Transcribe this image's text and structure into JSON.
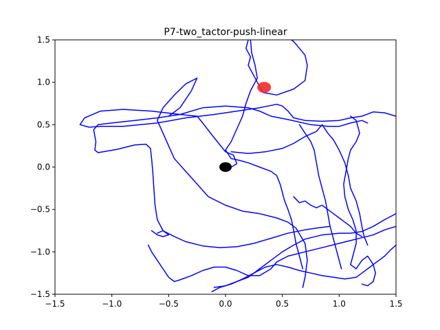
{
  "chart_data": {
    "type": "line",
    "title": "P7-two_tactor-push-linear",
    "xlabel": "",
    "ylabel": "",
    "xlim": [
      -1.5,
      1.5
    ],
    "ylim": [
      -1.5,
      1.5
    ],
    "xticks": [
      -1.5,
      -1.0,
      -0.5,
      0.0,
      0.5,
      1.0,
      1.5
    ],
    "yticks": [
      -1.5,
      -1.0,
      -0.5,
      0.0,
      0.5,
      1.0,
      1.5
    ],
    "xtick_labels": [
      "−1.5",
      "−1.0",
      "−0.5",
      "0.0",
      "0.5",
      "1.0",
      "1.5"
    ],
    "ytick_labels": [
      "−1.5",
      "−1.0",
      "−0.5",
      "0.0",
      "0.5",
      "1.0",
      "1.5"
    ],
    "grid": false,
    "colors": {
      "trajectory": "#0000ff",
      "start": "#000000",
      "target": "#ef2b2b"
    },
    "markers": {
      "start": {
        "x": 0.0,
        "y": 0.0,
        "color": "#000000"
      },
      "target": {
        "x": 0.34,
        "y": 0.94,
        "color": "#ef2b2b"
      }
    },
    "series": [
      {
        "color": "#0000ff",
        "points": [
          [
            -0.01,
            0.0
          ],
          [
            0.05,
            0.0
          ],
          [
            0.1,
            0.04
          ],
          [
            0.07,
            0.14
          ],
          [
            0.0,
            0.18
          ],
          [
            -0.06,
            0.28
          ],
          [
            -0.12,
            0.38
          ],
          [
            -0.2,
            0.52
          ],
          [
            -0.25,
            0.6
          ],
          [
            -0.4,
            0.62
          ],
          [
            -0.65,
            0.66
          ],
          [
            -0.9,
            0.68
          ],
          [
            -1.1,
            0.66
          ],
          [
            -1.24,
            0.58
          ],
          [
            -1.28,
            0.5
          ],
          [
            -1.2,
            0.47
          ],
          [
            -1.1,
            0.48
          ],
          [
            -0.9,
            0.48
          ],
          [
            -0.6,
            0.52
          ],
          [
            -0.35,
            0.58
          ],
          [
            -0.1,
            0.62
          ],
          [
            0.1,
            0.66
          ],
          [
            0.3,
            0.7
          ],
          [
            0.45,
            0.74
          ],
          [
            0.5,
            0.72
          ],
          [
            0.55,
            0.66
          ],
          [
            0.6,
            0.58
          ],
          [
            0.7,
            0.55
          ],
          [
            0.85,
            0.54
          ],
          [
            1.0,
            0.55
          ],
          [
            1.1,
            0.58
          ],
          [
            1.2,
            0.6
          ],
          [
            1.3,
            0.65
          ],
          [
            1.4,
            0.64
          ],
          [
            1.5,
            0.6
          ]
        ]
      },
      {
        "color": "#0000ff",
        "points": [
          [
            -1.12,
            0.17
          ],
          [
            -1.15,
            0.2
          ],
          [
            -1.14,
            0.3
          ],
          [
            -1.16,
            0.44
          ],
          [
            -1.12,
            0.5
          ],
          [
            -1.0,
            0.52
          ],
          [
            -0.8,
            0.55
          ],
          [
            -0.6,
            0.58
          ],
          [
            -0.4,
            0.62
          ],
          [
            -0.2,
            0.7
          ],
          [
            0.0,
            0.72
          ],
          [
            0.2,
            0.7
          ],
          [
            0.3,
            0.66
          ],
          [
            0.4,
            0.6
          ],
          [
            0.55,
            0.56
          ],
          [
            0.75,
            0.5
          ],
          [
            0.9,
            0.48
          ],
          [
            1.0,
            0.48
          ],
          [
            1.1,
            0.52
          ],
          [
            1.2,
            0.55
          ],
          [
            1.25,
            0.52
          ]
        ]
      },
      {
        "color": "#0000ff",
        "points": [
          [
            -1.12,
            0.17
          ],
          [
            -0.95,
            0.21
          ],
          [
            -0.8,
            0.26
          ],
          [
            -0.7,
            0.27
          ],
          [
            -0.66,
            0.22
          ],
          [
            -0.65,
            0.1
          ],
          [
            -0.64,
            -0.05
          ],
          [
            -0.63,
            -0.25
          ],
          [
            -0.62,
            -0.45
          ],
          [
            -0.6,
            -0.62
          ],
          [
            -0.55,
            -0.75
          ],
          [
            -0.45,
            -0.82
          ],
          [
            -0.35,
            -0.88
          ],
          [
            -0.2,
            -0.93
          ],
          [
            -0.05,
            -0.95
          ],
          [
            0.1,
            -0.94
          ],
          [
            0.25,
            -0.9
          ],
          [
            0.4,
            -0.84
          ],
          [
            0.55,
            -0.78
          ],
          [
            0.7,
            -0.74
          ],
          [
            0.8,
            -0.72
          ],
          [
            0.92,
            -0.7
          ]
        ]
      },
      {
        "color": "#0000ff",
        "points": [
          [
            -0.5,
            0.6
          ],
          [
            -0.4,
            0.7
          ],
          [
            -0.3,
            0.9
          ],
          [
            -0.25,
            1.05
          ],
          [
            -0.35,
            0.98
          ],
          [
            -0.45,
            0.85
          ],
          [
            -0.55,
            0.7
          ],
          [
            -0.6,
            0.55
          ],
          [
            -0.55,
            0.4
          ],
          [
            -0.5,
            0.25
          ],
          [
            -0.45,
            0.1
          ],
          [
            -0.35,
            -0.05
          ],
          [
            -0.25,
            -0.2
          ],
          [
            -0.15,
            -0.35
          ],
          [
            0.0,
            -0.45
          ],
          [
            0.15,
            -0.52
          ],
          [
            0.3,
            -0.55
          ],
          [
            0.45,
            -0.6
          ],
          [
            0.55,
            -0.65
          ],
          [
            0.62,
            -0.72
          ],
          [
            0.7,
            -0.9
          ],
          [
            0.72,
            -1.1
          ],
          [
            0.7,
            -1.3
          ],
          [
            0.68,
            -1.42
          ]
        ]
      },
      {
        "color": "#0000ff",
        "points": [
          [
            0.2,
            1.5
          ],
          [
            0.18,
            1.4
          ],
          [
            0.22,
            1.3
          ],
          [
            0.2,
            1.2
          ],
          [
            0.24,
            1.1
          ],
          [
            0.28,
            1.0
          ],
          [
            0.33,
            0.88
          ],
          [
            0.45,
            0.85
          ],
          [
            0.6,
            0.92
          ],
          [
            0.7,
            1.02
          ],
          [
            0.72,
            1.2
          ],
          [
            0.7,
            1.32
          ],
          [
            0.65,
            1.4
          ],
          [
            0.62,
            1.45
          ],
          [
            0.6,
            1.48
          ],
          [
            0.58,
            1.5
          ]
        ]
      },
      {
        "color": "#0000ff",
        "points": [
          [
            0.22,
            1.5
          ],
          [
            0.23,
            1.35
          ],
          [
            0.26,
            1.2
          ],
          [
            0.28,
            1.05
          ],
          [
            0.22,
            0.9
          ],
          [
            0.18,
            0.75
          ],
          [
            0.15,
            0.6
          ],
          [
            0.1,
            0.45
          ],
          [
            0.05,
            0.3
          ],
          [
            0.0,
            0.2
          ],
          [
            0.05,
            0.1
          ],
          [
            0.12,
            0.08
          ],
          [
            0.2,
            0.05
          ],
          [
            0.3,
            0.0
          ],
          [
            0.4,
            -0.05
          ],
          [
            0.45,
            -0.1
          ],
          [
            0.48,
            -0.2
          ],
          [
            0.5,
            -0.3
          ],
          [
            0.52,
            -0.4
          ],
          [
            0.55,
            -0.5
          ],
          [
            0.58,
            -0.62
          ],
          [
            0.6,
            -0.75
          ],
          [
            0.62,
            -0.9
          ],
          [
            0.65,
            -1.05
          ],
          [
            0.68,
            -1.2
          ]
        ]
      },
      {
        "color": "#0000ff",
        "points": [
          [
            0.05,
            0.18
          ],
          [
            0.2,
            0.16
          ],
          [
            0.35,
            0.18
          ],
          [
            0.5,
            0.22
          ],
          [
            0.6,
            0.28
          ],
          [
            0.7,
            0.36
          ],
          [
            0.8,
            0.42
          ],
          [
            0.85,
            0.5
          ],
          [
            0.9,
            0.4
          ],
          [
            0.95,
            0.32
          ],
          [
            1.0,
            0.2
          ],
          [
            1.05,
            0.05
          ],
          [
            1.08,
            -0.1
          ],
          [
            1.1,
            -0.25
          ],
          [
            1.15,
            -0.4
          ],
          [
            1.18,
            -0.55
          ],
          [
            1.2,
            -0.7
          ],
          [
            1.22,
            -0.82
          ],
          [
            1.25,
            -0.92
          ]
        ]
      },
      {
        "color": "#0000ff",
        "points": [
          [
            -0.65,
            -0.75
          ],
          [
            -0.6,
            -0.8
          ],
          [
            -0.55,
            -0.82
          ],
          [
            -0.5,
            -0.8
          ],
          [
            -0.55,
            -0.75
          ],
          [
            -0.6,
            -0.78
          ]
        ]
      },
      {
        "color": "#0000ff",
        "points": [
          [
            -0.68,
            -0.92
          ],
          [
            -0.65,
            -1.0
          ],
          [
            -0.6,
            -1.1
          ],
          [
            -0.55,
            -1.2
          ],
          [
            -0.5,
            -1.3
          ],
          [
            -0.45,
            -1.35
          ],
          [
            -0.4,
            -1.33
          ],
          [
            -0.3,
            -1.28
          ],
          [
            -0.2,
            -1.22
          ],
          [
            -0.1,
            -1.18
          ],
          [
            0.0,
            -1.18
          ],
          [
            0.1,
            -1.22
          ],
          [
            0.2,
            -1.28
          ],
          [
            0.3,
            -1.28
          ],
          [
            0.4,
            -1.2
          ],
          [
            0.45,
            -1.12
          ],
          [
            0.55,
            -1.05
          ],
          [
            0.7,
            -1.0
          ],
          [
            0.85,
            -0.95
          ],
          [
            1.0,
            -0.9
          ],
          [
            1.15,
            -0.85
          ],
          [
            1.3,
            -0.8
          ],
          [
            1.4,
            -0.74
          ],
          [
            1.5,
            -0.7
          ]
        ]
      },
      {
        "color": "#0000ff",
        "points": [
          [
            -0.12,
            -1.47
          ],
          [
            -0.05,
            -1.42
          ],
          [
            0.05,
            -1.38
          ],
          [
            0.15,
            -1.32
          ],
          [
            0.25,
            -1.25
          ],
          [
            0.35,
            -1.18
          ],
          [
            0.45,
            -1.15
          ],
          [
            0.55,
            -1.18
          ],
          [
            0.65,
            -1.22
          ],
          [
            0.75,
            -1.25
          ],
          [
            0.85,
            -1.28
          ],
          [
            0.95,
            -1.3
          ],
          [
            1.05,
            -1.32
          ],
          [
            1.15,
            -1.3
          ],
          [
            1.2,
            -1.25
          ],
          [
            1.25,
            -1.2
          ],
          [
            1.3,
            -1.15
          ],
          [
            1.35,
            -1.1
          ],
          [
            1.4,
            -1.05
          ],
          [
            1.45,
            -0.98
          ],
          [
            1.5,
            -0.92
          ]
        ]
      },
      {
        "color": "#0000ff",
        "points": [
          [
            -0.1,
            -1.42
          ],
          [
            0.0,
            -1.4
          ],
          [
            0.1,
            -1.35
          ],
          [
            0.2,
            -1.3
          ],
          [
            0.3,
            -1.2
          ],
          [
            0.4,
            -1.1
          ],
          [
            0.5,
            -1.0
          ],
          [
            0.6,
            -0.92
          ],
          [
            0.7,
            -0.85
          ],
          [
            0.85,
            -0.8
          ],
          [
            1.0,
            -0.78
          ],
          [
            1.1,
            -0.78
          ],
          [
            1.2,
            -0.76
          ],
          [
            1.3,
            -0.7
          ],
          [
            1.4,
            -0.62
          ],
          [
            1.5,
            -0.55
          ]
        ]
      },
      {
        "color": "#0000ff",
        "points": [
          [
            1.1,
            0.6
          ],
          [
            1.15,
            0.55
          ],
          [
            1.18,
            0.4
          ],
          [
            1.15,
            0.3
          ],
          [
            1.1,
            0.2
          ],
          [
            1.08,
            0.1
          ],
          [
            1.06,
            -0.05
          ],
          [
            1.04,
            -0.2
          ],
          [
            1.05,
            -0.35
          ],
          [
            1.08,
            -0.5
          ],
          [
            1.12,
            -0.62
          ],
          [
            1.15,
            -0.75
          ],
          [
            1.15,
            -0.9
          ],
          [
            1.12,
            -1.05
          ],
          [
            1.1,
            -1.15
          ],
          [
            1.15,
            -1.2
          ],
          [
            1.2,
            -1.1
          ],
          [
            1.25,
            -1.05
          ],
          [
            1.3,
            -1.15
          ],
          [
            1.32,
            -1.25
          ],
          [
            1.3,
            -1.35
          ],
          [
            1.25,
            -1.4
          ],
          [
            1.2,
            -1.38
          ]
        ]
      },
      {
        "color": "#0000ff",
        "points": [
          [
            0.65,
            0.5
          ],
          [
            0.7,
            0.4
          ],
          [
            0.75,
            0.3
          ],
          [
            0.78,
            0.2
          ],
          [
            0.8,
            0.05
          ],
          [
            0.82,
            -0.1
          ],
          [
            0.85,
            -0.25
          ],
          [
            0.88,
            -0.4
          ],
          [
            0.9,
            -0.55
          ],
          [
            0.92,
            -0.7
          ],
          [
            0.95,
            -0.85
          ],
          [
            0.98,
            -1.0
          ],
          [
            1.0,
            -1.1
          ],
          [
            1.02,
            -1.2
          ]
        ]
      },
      {
        "color": "#0000ff",
        "points": [
          [
            0.6,
            -0.35
          ],
          [
            0.65,
            -0.42
          ],
          [
            0.7,
            -0.4
          ],
          [
            0.75,
            -0.45
          ],
          [
            0.8,
            -0.48
          ],
          [
            0.85,
            -0.45
          ],
          [
            0.9,
            -0.5
          ],
          [
            0.95,
            -0.55
          ],
          [
            1.0,
            -0.6
          ],
          [
            1.05,
            -0.65
          ],
          [
            1.1,
            -0.7
          ],
          [
            1.15,
            -0.78
          ],
          [
            1.2,
            -0.82
          ]
        ]
      }
    ]
  }
}
